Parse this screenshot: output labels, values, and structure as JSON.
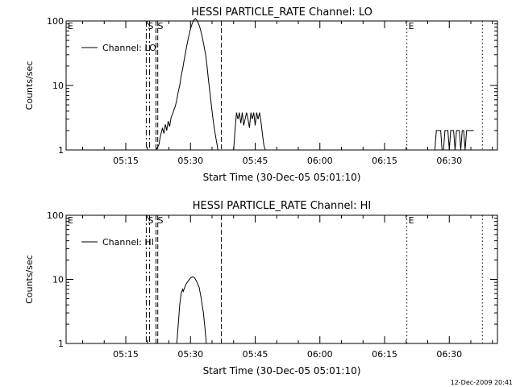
{
  "footer_date": "12-Dec-2009 20:41",
  "chart_data": [
    {
      "type": "line",
      "title": "HESSI PARTICLE_RATE Channel: LO",
      "xlabel": "Start Time (30-Dec-05 05:01:10)",
      "ylabel": "Counts/sec",
      "y_scale": "log",
      "ylim": [
        1,
        100
      ],
      "xlim": [
        "05:01:10",
        "06:41:10"
      ],
      "y_ticks": [
        "1",
        "10",
        "100"
      ],
      "x_ticks": [
        "05:15",
        "05:30",
        "05:45",
        "06:00",
        "06:15",
        "06:30"
      ],
      "legend": "Channel: LO",
      "legend_placement": "top-left",
      "markers": [
        {
          "label": "E",
          "time": "05:01:10",
          "style": "none"
        },
        {
          "label": "S",
          "time": "05:19:45",
          "style": "dash-dot"
        },
        {
          "label": "",
          "time": "05:20:30",
          "style": "dash-dot"
        },
        {
          "label": "S",
          "time": "05:22:00",
          "style": "dashed"
        },
        {
          "label": "",
          "time": "05:22:25",
          "style": "dashed"
        },
        {
          "label": "",
          "time": "05:37:10",
          "style": "dashed"
        },
        {
          "label": "E",
          "time": "06:20:10",
          "style": "dotted"
        },
        {
          "label": "",
          "time": "06:37:40",
          "style": "dotted"
        }
      ],
      "series": [
        {
          "segments": [
            [
              [
                "05:22:00",
                1
              ],
              [
                "05:22:40",
                1.2
              ],
              [
                "05:23:00",
                1.6
              ],
              [
                "05:23:30",
                2.2
              ],
              [
                "05:23:50",
                1.8
              ],
              [
                "05:24:10",
                2.5
              ],
              [
                "05:24:30",
                2.0
              ],
              [
                "05:24:50",
                2.8
              ],
              [
                "05:25:10",
                2.3
              ],
              [
                "05:25:30",
                3.2
              ],
              [
                "05:25:50",
                3.6
              ],
              [
                "05:26:10",
                4.2
              ],
              [
                "05:26:30",
                4.8
              ],
              [
                "05:26:50",
                6
              ],
              [
                "05:27:10",
                8
              ],
              [
                "05:27:30",
                10
              ],
              [
                "05:27:50",
                14
              ],
              [
                "05:28:10",
                18
              ],
              [
                "05:28:30",
                24
              ],
              [
                "05:28:50",
                32
              ],
              [
                "05:29:10",
                42
              ],
              [
                "05:29:30",
                55
              ],
              [
                "05:29:50",
                68
              ],
              [
                "05:30:10",
                82
              ],
              [
                "05:30:30",
                95
              ],
              [
                "05:30:50",
                105
              ],
              [
                "05:31:10",
                108
              ],
              [
                "05:31:30",
                102
              ],
              [
                "05:31:50",
                92
              ],
              [
                "05:32:10",
                80
              ],
              [
                "05:32:30",
                66
              ],
              [
                "05:32:50",
                52
              ],
              [
                "05:33:10",
                40
              ],
              [
                "05:33:30",
                30
              ],
              [
                "05:33:50",
                20
              ],
              [
                "05:34:10",
                12
              ],
              [
                "05:34:30",
                8
              ],
              [
                "05:34:50",
                5
              ],
              [
                "05:35:10",
                3.2
              ],
              [
                "05:35:30",
                2.2
              ],
              [
                "05:35:50",
                1.6
              ],
              [
                "05:36:10",
                1.2
              ],
              [
                "05:36:20",
                1
              ]
            ],
            [
              [
                "05:40:00",
                1
              ],
              [
                "05:40:20",
                2
              ],
              [
                "05:40:40",
                3.8
              ],
              [
                "05:41:00",
                3
              ],
              [
                "05:41:20",
                3.8
              ],
              [
                "05:41:40",
                2.6
              ],
              [
                "05:42:00",
                3.8
              ],
              [
                "05:42:20",
                2.4
              ],
              [
                "05:42:40",
                3
              ],
              [
                "05:43:00",
                3.8
              ],
              [
                "05:43:20",
                3
              ],
              [
                "05:43:40",
                2.2
              ],
              [
                "05:44:00",
                3.8
              ],
              [
                "05:44:20",
                3
              ],
              [
                "05:44:40",
                3.8
              ],
              [
                "05:45:00",
                2.4
              ],
              [
                "05:45:20",
                3.8
              ],
              [
                "05:45:40",
                3
              ],
              [
                "05:46:00",
                3.8
              ],
              [
                "05:46:20",
                2.8
              ],
              [
                "05:46:40",
                1.8
              ],
              [
                "05:47:00",
                1.2
              ],
              [
                "05:47:20",
                1
              ]
            ],
            [
              [
                "06:26:40",
                1
              ],
              [
                "06:27:00",
                2
              ],
              [
                "06:28:00",
                2
              ],
              [
                "06:28:20",
                1
              ],
              [
                "06:28:40",
                1
              ],
              [
                "06:29:00",
                2
              ],
              [
                "06:29:40",
                2
              ],
              [
                "06:30:00",
                1
              ],
              [
                "06:30:20",
                2
              ],
              [
                "06:31:00",
                2
              ],
              [
                "06:31:20",
                1
              ],
              [
                "06:31:40",
                2
              ],
              [
                "06:32:20",
                2
              ],
              [
                "06:32:40",
                1
              ],
              [
                "06:33:00",
                2
              ],
              [
                "06:33:20",
                2
              ],
              [
                "06:33:40",
                1
              ],
              [
                "06:34:00",
                2
              ],
              [
                "06:35:40",
                2
              ]
            ]
          ]
        }
      ]
    },
    {
      "type": "line",
      "title": "HESSI PARTICLE_RATE Channel: HI",
      "xlabel": "Start Time (30-Dec-05 05:01:10)",
      "ylabel": "Counts/sec",
      "y_scale": "log",
      "ylim": [
        1,
        100
      ],
      "xlim": [
        "05:01:10",
        "06:41:10"
      ],
      "y_ticks": [
        "1",
        "10",
        "100"
      ],
      "x_ticks": [
        "05:15",
        "05:30",
        "05:45",
        "06:00",
        "06:15",
        "06:30"
      ],
      "legend": "Channel: HI",
      "legend_placement": "top-left",
      "markers": [
        {
          "label": "E",
          "time": "05:01:10",
          "style": "none"
        },
        {
          "label": "S",
          "time": "05:19:45",
          "style": "dash-dot"
        },
        {
          "label": "",
          "time": "05:20:30",
          "style": "dash-dot"
        },
        {
          "label": "S",
          "time": "05:22:00",
          "style": "dashed"
        },
        {
          "label": "",
          "time": "05:22:25",
          "style": "dashed"
        },
        {
          "label": "",
          "time": "05:37:10",
          "style": "dashed"
        },
        {
          "label": "E",
          "time": "06:20:10",
          "style": "dotted"
        },
        {
          "label": "",
          "time": "06:37:40",
          "style": "dotted"
        }
      ],
      "series": [
        {
          "segments": [
            [
              [
                "05:26:50",
                1
              ],
              [
                "05:27:10",
                2
              ],
              [
                "05:27:30",
                4
              ],
              [
                "05:27:50",
                6
              ],
              [
                "05:28:10",
                7
              ],
              [
                "05:28:20",
                6.5
              ],
              [
                "05:28:40",
                7.5
              ],
              [
                "05:29:00",
                8.5
              ],
              [
                "05:29:30",
                9.5
              ],
              [
                "05:30:00",
                10.5
              ],
              [
                "05:30:30",
                11
              ],
              [
                "05:31:00",
                10.5
              ],
              [
                "05:31:30",
                9
              ],
              [
                "05:32:00",
                7.5
              ],
              [
                "05:32:30",
                5
              ],
              [
                "05:33:00",
                3
              ],
              [
                "05:33:20",
                1.8
              ],
              [
                "05:33:40",
                1
              ]
            ]
          ]
        }
      ]
    }
  ]
}
